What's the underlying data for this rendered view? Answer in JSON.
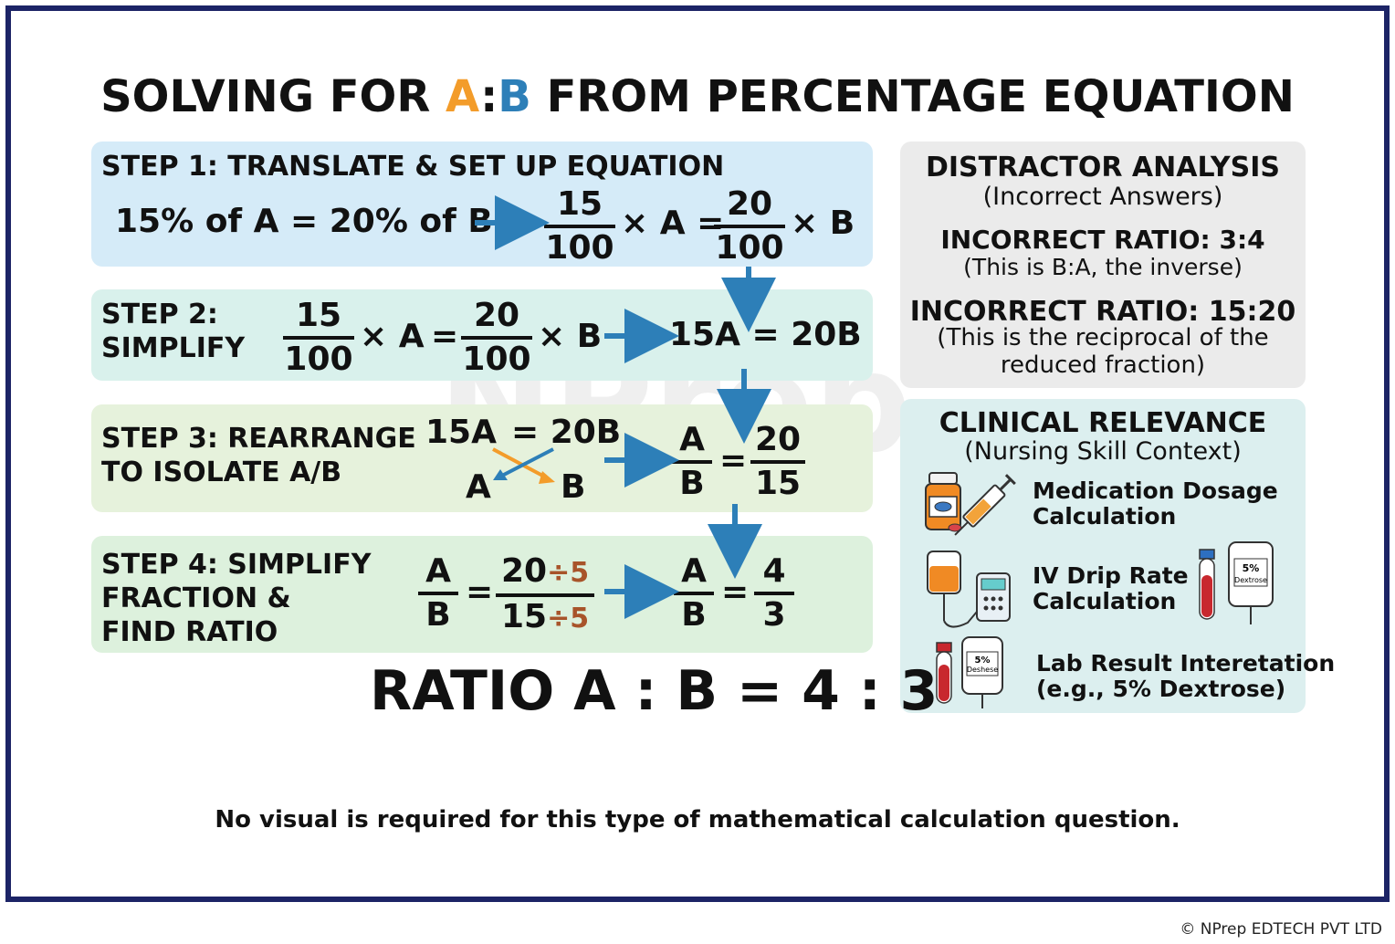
{
  "title": {
    "prefix": "SOLVING FOR ",
    "a": "A",
    "colon": ":",
    "b": "B",
    "suffix": " FROM PERCENTAGE EQUATION"
  },
  "step1": {
    "heading": "STEP 1: TRANSLATE & SET UP EQUATION",
    "statement": "15% of A = 20% of B",
    "frac1_num": "15",
    "frac1_den": "100",
    "mid": "× A =",
    "frac2_num": "20",
    "frac2_den": "100",
    "tail": "× B"
  },
  "step2": {
    "heading_line1": "STEP 2:",
    "heading_line2": "SIMPLIFY",
    "frac1_num": "15",
    "frac1_den": "100",
    "times_a": "× A",
    "eq": "=",
    "frac2_num": "20",
    "frac2_den": "100",
    "times_b": "× B",
    "result": "15A = 20B"
  },
  "step3": {
    "heading_line1": "STEP 3: REARRANGE",
    "heading_line2": "TO ISOLATE A/B",
    "top_left": "15A",
    "top_right": "= 20B",
    "bottom_left": "A",
    "bottom_right": "B",
    "lhs_num": "A",
    "lhs_den": "B",
    "eq": "=",
    "rhs_num": "20",
    "rhs_den": "15"
  },
  "step4": {
    "heading_line1": "STEP 4: SIMPLIFY",
    "heading_line2": "FRACTION &",
    "heading_line3": "FIND RATIO",
    "lhs_num": "A",
    "lhs_den": "B",
    "eq": "=",
    "mid_num": "20",
    "mid_num_div": "÷5",
    "mid_den": "15",
    "mid_den_div": "÷5",
    "res_num": "A",
    "res_den": "B",
    "eq2": "=",
    "final_num": "4",
    "final_den": "3"
  },
  "final_ratio": "RATIO A : B = 4 : 3",
  "distractor": {
    "heading": "DISTRACTOR ANALYSIS",
    "subheading": "(Incorrect Answers)",
    "item1_title": "INCORRECT RATIO: 3:4",
    "item1_desc": "(This is B:A, the inverse)",
    "item2_title": "INCORRECT RATIO: 15:20",
    "item2_desc_line1": "(This is the reciprocal of the",
    "item2_desc_line2": "reduced fraction)"
  },
  "clinical": {
    "heading": "CLINICAL RELEVANCE",
    "subheading": "(Nursing Skill Context)",
    "item1_line1": "Medication Dosage",
    "item1_line2": "Calculation",
    "item2_line1": "IV Drip Rate",
    "item2_line2": "Calculation",
    "item3_line1": "Lab Result Interetation",
    "item3_line2": "(e.g., 5% Dextrose)",
    "bag_label_1": "5%",
    "bag_label_1b": "Dextrose",
    "bag_label_2": "5%",
    "bag_label_2b": "Deshese"
  },
  "watermark": "NPrep",
  "footer_note": "No visual is required for this type of mathematical calculation question.",
  "copyright": "© NPrep EDTECH PVT LTD",
  "colors": {
    "frame": "#1c2466",
    "accent_orange": "#f39c2a",
    "accent_blue": "#2d7fb8",
    "arrow": "#2d7fb8"
  },
  "icons": [
    "right-arrow-icon",
    "down-arrow-icon",
    "pill-bottle-icon",
    "syringe-icon",
    "iv-bag-icon",
    "infusion-pump-icon",
    "blood-tube-icon"
  ]
}
